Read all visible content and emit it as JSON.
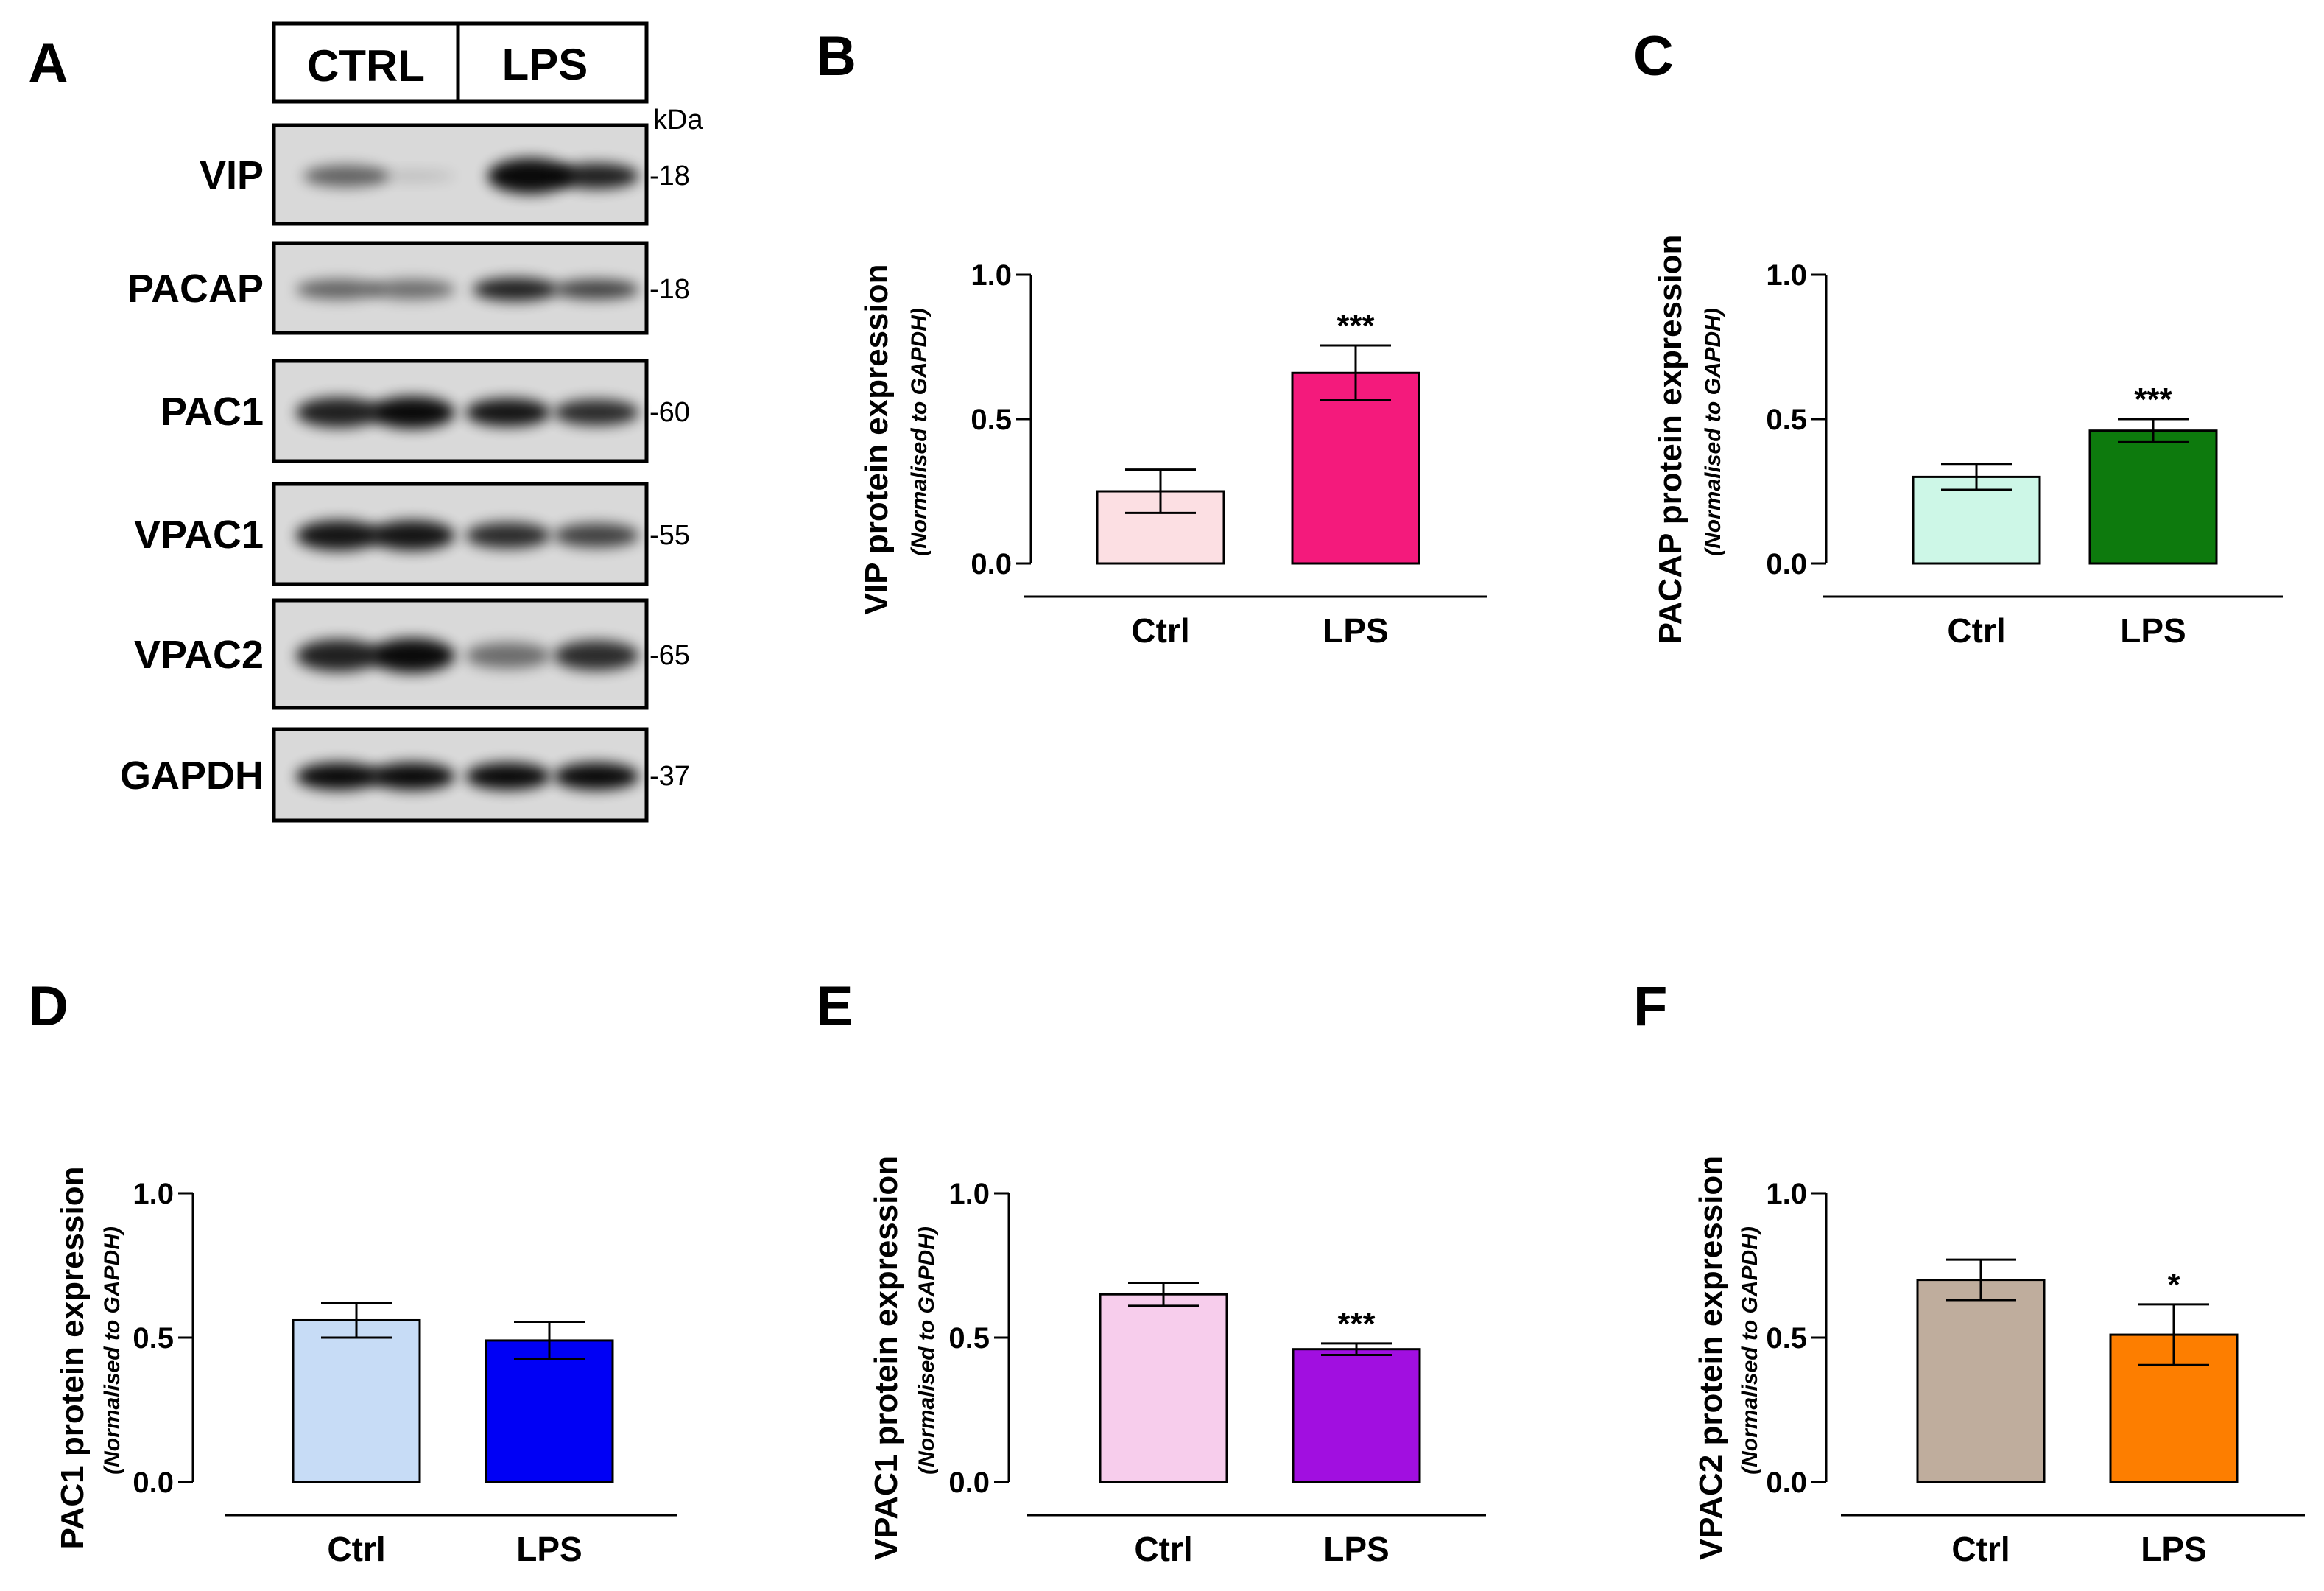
{
  "blot": {
    "panel_label": "A",
    "groups": [
      "CTRL",
      "LPS"
    ],
    "kda_unit": "kDa",
    "rows": [
      {
        "name": "VIP",
        "kda": "-18"
      },
      {
        "name": "PACAP",
        "kda": "-18"
      },
      {
        "name": "PAC1",
        "kda": "-60"
      },
      {
        "name": "VPAC1",
        "kda": "-55"
      },
      {
        "name": "VPAC2",
        "kda": "-65"
      },
      {
        "name": "GAPDH",
        "kda": "-37"
      }
    ]
  },
  "chart_data": [
    {
      "panel": "B",
      "type": "bar",
      "categories": [
        "Ctrl",
        "LPS"
      ],
      "values": [
        0.25,
        0.66
      ],
      "errors": [
        0.075,
        0.095
      ],
      "significance": [
        "",
        "***"
      ],
      "colors": [
        "#fcdfe3",
        "#f41a7c"
      ],
      "ylabel": "VIP protein expression",
      "ylabel_sub": "(Normalised to GAPDH)",
      "ylim": [
        0,
        1.0
      ],
      "yticks": [
        "0.0",
        "0.5",
        "1.0"
      ]
    },
    {
      "panel": "C",
      "type": "bar",
      "categories": [
        "Ctrl",
        "LPS"
      ],
      "values": [
        0.3,
        0.46
      ],
      "errors": [
        0.045,
        0.04
      ],
      "significance": [
        "",
        "***"
      ],
      "colors": [
        "#cdf7e7",
        "#0d7a0d"
      ],
      "ylabel": "PACAP protein expression",
      "ylabel_sub": "(Normalised to GAPDH)",
      "ylim": [
        0,
        1.0
      ],
      "yticks": [
        "0.0",
        "0.5",
        "1.0"
      ]
    },
    {
      "panel": "D",
      "type": "bar",
      "categories": [
        "Ctrl",
        "LPS"
      ],
      "values": [
        0.56,
        0.49
      ],
      "errors": [
        0.06,
        0.065
      ],
      "significance": [
        "",
        ""
      ],
      "colors": [
        "#c7dcf6",
        "#0000f5"
      ],
      "ylabel": "PAC1 protein expression",
      "ylabel_sub": "(Normalised to GAPDH)",
      "ylim": [
        0,
        1.0
      ],
      "yticks": [
        "0.0",
        "0.5",
        "1.0"
      ]
    },
    {
      "panel": "E",
      "type": "bar",
      "categories": [
        "Ctrl",
        "LPS"
      ],
      "values": [
        0.65,
        0.46
      ],
      "errors": [
        0.04,
        0.02
      ],
      "significance": [
        "",
        "***"
      ],
      "colors": [
        "#f7cdec",
        "#a10fe0"
      ],
      "ylabel": "VPAC1 protein expression",
      "ylabel_sub": "(Normalised to GAPDH)",
      "ylim": [
        0,
        1.0
      ],
      "yticks": [
        "0.0",
        "0.5",
        "1.0"
      ]
    },
    {
      "panel": "F",
      "type": "bar",
      "categories": [
        "Ctrl",
        "LPS"
      ],
      "values": [
        0.7,
        0.51
      ],
      "errors": [
        0.07,
        0.105
      ],
      "significance": [
        "",
        "*"
      ],
      "colors": [
        "#bfad9d",
        "#fd7e00"
      ],
      "ylabel": "VPAC2 protein expression",
      "ylabel_sub": "(Normalised to GAPDH)",
      "ylim": [
        0,
        1.0
      ],
      "yticks": [
        "0.0",
        "0.5",
        "1.0"
      ]
    }
  ]
}
